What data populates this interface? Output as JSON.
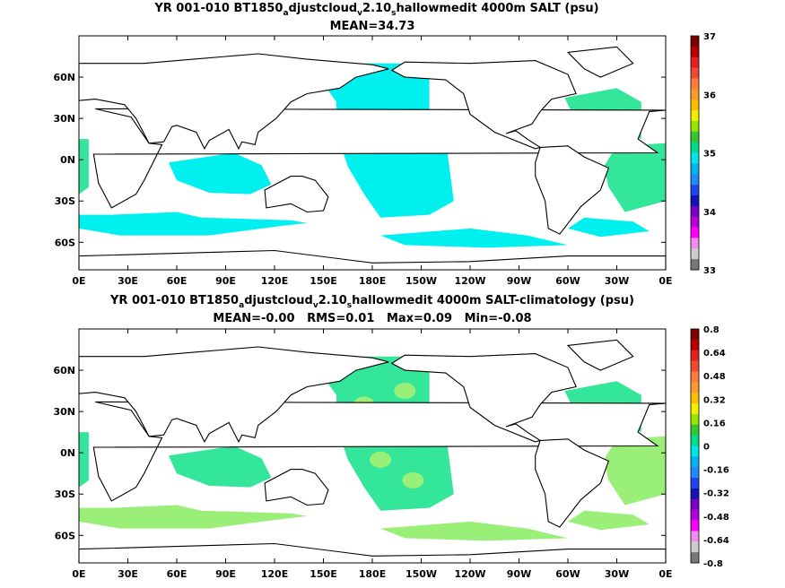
{
  "chart_data": [
    {
      "type": "heatmap",
      "title_parts": {
        "lead": "YR 001-010 BT1850",
        "sub1": "a",
        "mid1": "djustcloud",
        "sub2": "v",
        "mid2": "2.10",
        "sub3": "s",
        "tail": "hallowmedit 4000m SALT (psu)"
      },
      "subtitle": "MEAN=34.73",
      "x_ticks": [
        "0E",
        "30E",
        "60E",
        "90E",
        "120E",
        "150E",
        "180E",
        "150W",
        "120W",
        "90W",
        "60W",
        "30W",
        "0E"
      ],
      "y_ticks": [
        "60N",
        "30N",
        "0N",
        "30S",
        "60S"
      ],
      "y_tick_values": [
        60,
        30,
        0,
        -30,
        -60
      ],
      "xlim": [
        0,
        360
      ],
      "ylim": [
        -80,
        90
      ],
      "field_colors": [
        "#00f0f0",
        "#33e699"
      ],
      "colorbar": {
        "labels": [
          "37",
          "36",
          "35",
          "34",
          "33"
        ],
        "colors": [
          "#7d0000",
          "#b40000",
          "#e61e1e",
          "#f04b32",
          "#ff7d3c",
          "#ff9b2d",
          "#ffbe00",
          "#f0f000",
          "#96e600",
          "#32c832",
          "#00dc8c",
          "#00e6e6",
          "#00b4f0",
          "#1e8cff",
          "#1e46f0",
          "#1414b4",
          "#7800c8",
          "#b400dc",
          "#ff00ff",
          "#f08cf0",
          "#cdcdcd",
          "#787878"
        ]
      }
    },
    {
      "type": "heatmap",
      "title_parts": {
        "lead": "YR 001-010 BT1850",
        "sub1": "a",
        "mid1": "djustcloud",
        "sub2": "v",
        "mid2": "2.10",
        "sub3": "s",
        "tail": "hallowmedit 4000m SALT-climatology (psu)"
      },
      "subtitle": "MEAN=-0.00   RMS=0.01   Max=0.09   Min=-0.08",
      "x_ticks": [
        "0E",
        "30E",
        "60E",
        "90E",
        "120E",
        "150E",
        "180E",
        "150W",
        "120W",
        "90W",
        "60W",
        "30W",
        "0E"
      ],
      "y_ticks": [
        "60N",
        "30N",
        "0N",
        "30S",
        "60S"
      ],
      "y_tick_values": [
        60,
        30,
        0,
        -30,
        -60
      ],
      "xlim": [
        0,
        360
      ],
      "ylim": [
        -80,
        90
      ],
      "field_colors": [
        "#33e699",
        "#99ef77"
      ],
      "colorbar": {
        "labels": [
          "0.8",
          "0.64",
          "0.48",
          "0.32",
          "0.16",
          "0",
          "-0.16",
          "-0.32",
          "-0.48",
          "-0.64",
          "-0.8"
        ],
        "colors": [
          "#7d0000",
          "#b40000",
          "#e61e1e",
          "#f04b32",
          "#ff7d3c",
          "#ff9b2d",
          "#ffbe00",
          "#f0f000",
          "#96e600",
          "#32c832",
          "#00dc8c",
          "#00e6e6",
          "#00b4f0",
          "#1e8cff",
          "#1e46f0",
          "#1414b4",
          "#7800c8",
          "#b400dc",
          "#ff00ff",
          "#f08cf0",
          "#cdcdcd",
          "#787878"
        ]
      }
    }
  ]
}
